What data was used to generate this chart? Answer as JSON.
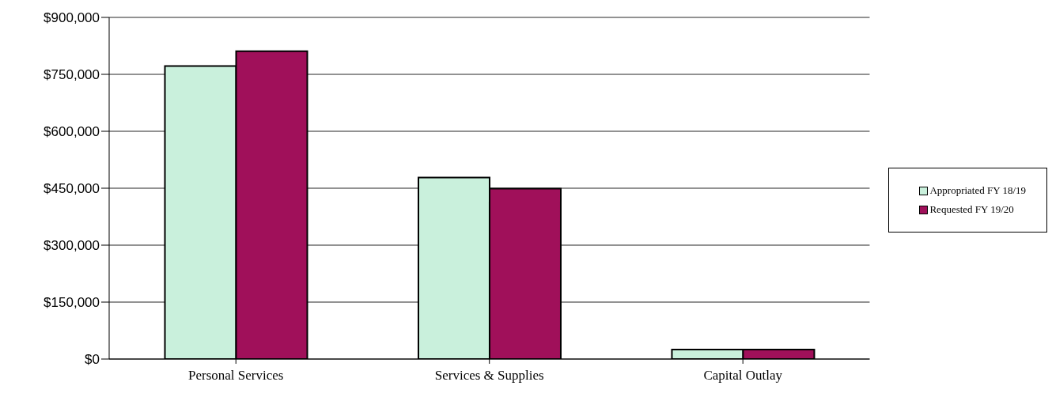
{
  "chart_data": {
    "type": "bar",
    "categories": [
      "Personal Services",
      "Services & Supplies",
      "Capital Outlay"
    ],
    "series": [
      {
        "name": "Appropriated FY 18/19",
        "color": "#c9f0dc",
        "values": [
          772000,
          478000,
          25000
        ]
      },
      {
        "name": "Requested FY 19/20",
        "color": "#a0105a",
        "values": [
          811000,
          449000,
          25000
        ]
      }
    ],
    "ylim": [
      0,
      900000
    ],
    "yticks": [
      {
        "value": 0,
        "label": "$0"
      },
      {
        "value": 150000,
        "label": "$150,000"
      },
      {
        "value": 300000,
        "label": "$300,000"
      },
      {
        "value": 450000,
        "label": "$450,000"
      },
      {
        "value": 600000,
        "label": "$600,000"
      },
      {
        "value": 750000,
        "label": "$750,000"
      },
      {
        "value": 900000,
        "label": "$900,000"
      }
    ],
    "grid": "y",
    "legend": "right"
  }
}
